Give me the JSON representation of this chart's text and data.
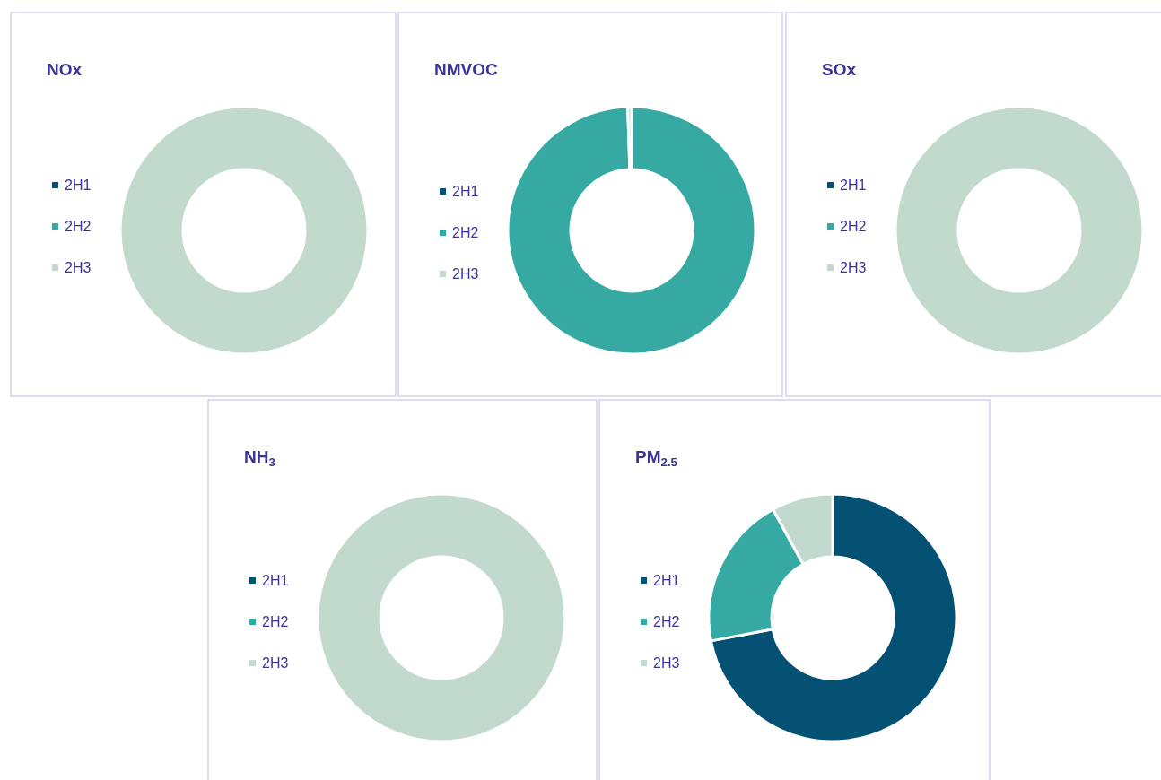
{
  "chart_data": [
    {
      "type": "donut",
      "title": "NOx",
      "categories": [
        "2H1",
        "2H2",
        "2H3"
      ],
      "values": [
        0,
        0,
        100
      ],
      "colors": [
        "#045174",
        "#36aaa2",
        "#c2dacd"
      ],
      "legend": "left"
    },
    {
      "type": "donut",
      "title": "NMVOC",
      "categories": [
        "2H1",
        "2H2",
        "2H3"
      ],
      "values": [
        0,
        99.5,
        0.5
      ],
      "colors": [
        "#045174",
        "#36aaa2",
        "#c2dacd"
      ],
      "legend": "left"
    },
    {
      "type": "donut",
      "title": "SOx",
      "categories": [
        "2H1",
        "2H2",
        "2H3"
      ],
      "values": [
        0,
        0,
        100
      ],
      "colors": [
        "#045174",
        "#36aaa2",
        "#c2dacd"
      ],
      "legend": "left"
    },
    {
      "type": "donut",
      "title": "NH$_{3}$",
      "categories": [
        "2H1",
        "2H2",
        "2H3"
      ],
      "values": [
        0,
        0,
        100
      ],
      "colors": [
        "#045174",
        "#36aaa2",
        "#c2dacd"
      ],
      "legend": "left"
    },
    {
      "type": "donut",
      "title": "PM$_{2.5}$",
      "categories": [
        "2H1",
        "2H2",
        "2H3"
      ],
      "values": [
        72,
        20,
        8
      ],
      "colors": [
        "#045174",
        "#36aaa2",
        "#c2dacd"
      ],
      "legend": "left"
    }
  ]
}
